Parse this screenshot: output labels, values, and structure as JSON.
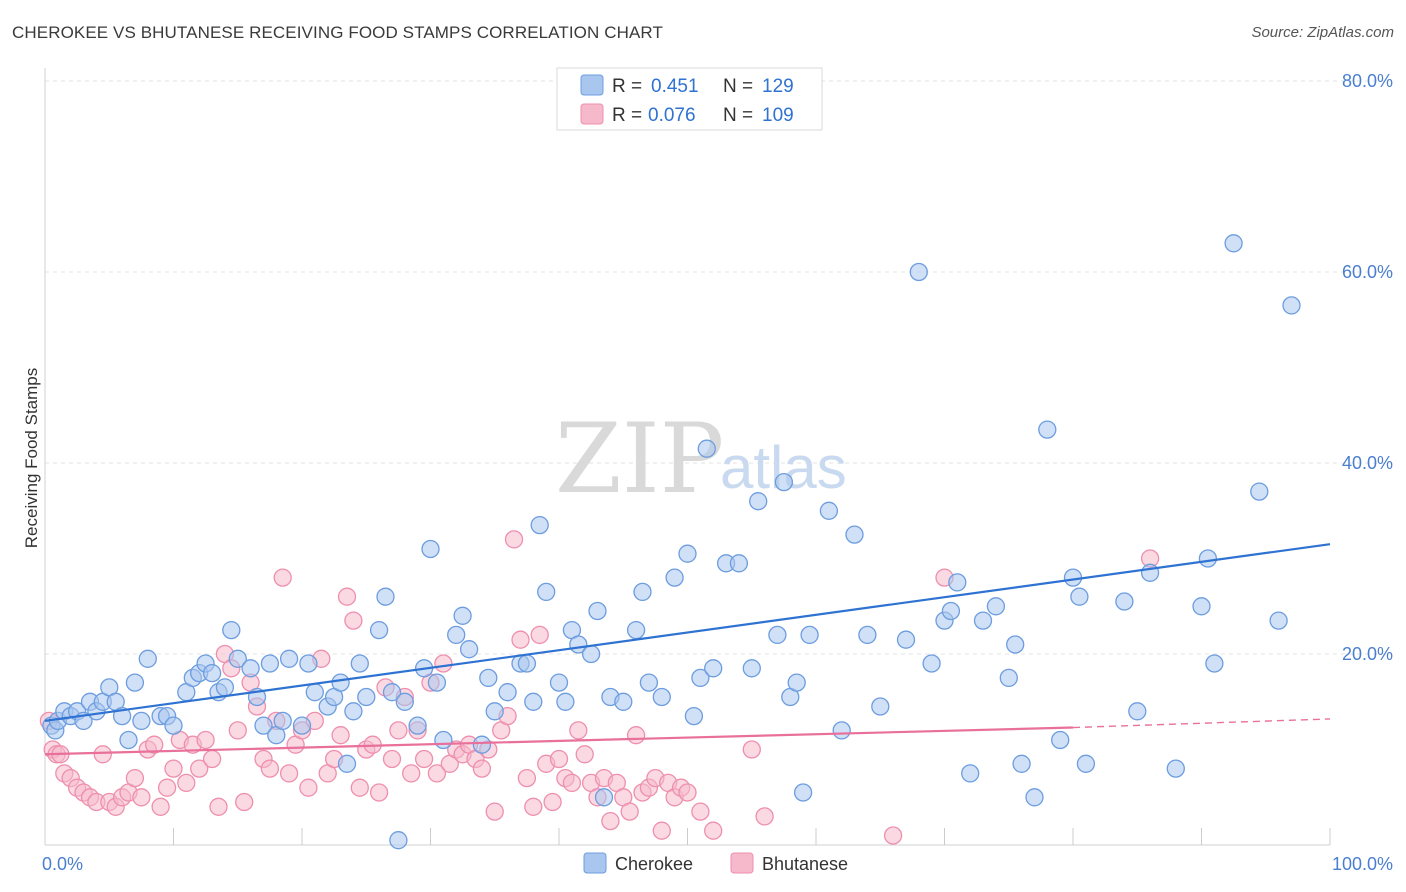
{
  "title": "CHEROKEE VS BHUTANESE RECEIVING FOOD STAMPS CORRELATION CHART",
  "source": "Source: ZipAtlas.com",
  "watermark": {
    "part1": "ZIP",
    "part2": "atlas"
  },
  "legend_top": [
    {
      "r_label": "R = ",
      "r_value": "0.451",
      "n_label": "N = ",
      "n_value": "129"
    },
    {
      "r_label": "R = ",
      "r_value": "0.076",
      "n_label": "N = ",
      "n_value": "109"
    }
  ],
  "legend_bottom": [
    "Cherokee",
    "Bhutanese"
  ],
  "chart_data": {
    "type": "scatter",
    "title": "CHEROKEE VS BHUTANESE RECEIVING FOOD STAMPS CORRELATION CHART",
    "xlabel": "",
    "ylabel": "Receiving Food Stamps",
    "xlim": [
      0,
      100
    ],
    "ylim": [
      0,
      80
    ],
    "x_tick_labels": [
      "0.0%",
      "100.0%"
    ],
    "y_ticks": [
      20,
      40,
      60,
      80
    ],
    "y_tick_labels": [
      "20.0%",
      "40.0%",
      "60.0%",
      "80.0%"
    ],
    "grid": true,
    "legend_placement": "top-center",
    "colors": {
      "cherokee_fill": "#a9c6ee",
      "cherokee_stroke": "#6d9ddf",
      "cherokee_line": "#2e72d2",
      "bhutanese_fill": "#f6b9cc",
      "bhutanese_stroke": "#ee8fae",
      "bhutanese_line": "#e8709a",
      "tick": "#4a7fd0",
      "grid": "#e3e3e3"
    },
    "series": [
      {
        "name": "Cherokee",
        "r": 0.451,
        "n": 129,
        "trend": {
          "x": [
            0,
            100
          ],
          "y": [
            13.0,
            31.5
          ]
        },
        "points": [
          [
            0.5,
            12.5
          ],
          [
            0.8,
            12
          ],
          [
            1,
            13
          ],
          [
            1.5,
            14
          ],
          [
            2,
            13.5
          ],
          [
            2.5,
            14
          ],
          [
            3,
            13
          ],
          [
            3.5,
            15
          ],
          [
            4,
            14
          ],
          [
            4.5,
            15
          ],
          [
            5,
            16.5
          ],
          [
            5.5,
            15
          ],
          [
            6,
            13.5
          ],
          [
            6.5,
            11
          ],
          [
            7,
            17
          ],
          [
            7.5,
            13
          ],
          [
            8,
            19.5
          ],
          [
            9,
            13.5
          ],
          [
            9.5,
            13.5
          ],
          [
            10,
            12.5
          ],
          [
            11,
            16
          ],
          [
            11.5,
            17.5
          ],
          [
            12,
            18
          ],
          [
            12.5,
            19
          ],
          [
            13,
            18
          ],
          [
            13.5,
            16
          ],
          [
            14,
            16.5
          ],
          [
            14.5,
            22.5
          ],
          [
            15,
            19.5
          ],
          [
            16,
            18.5
          ],
          [
            16.5,
            15.5
          ],
          [
            17,
            12.5
          ],
          [
            17.5,
            19
          ],
          [
            18,
            11.5
          ],
          [
            18.5,
            13
          ],
          [
            19,
            19.5
          ],
          [
            20,
            12.5
          ],
          [
            20.5,
            19
          ],
          [
            21,
            16
          ],
          [
            22,
            14.5
          ],
          [
            22.5,
            15.5
          ],
          [
            23,
            17
          ],
          [
            23.5,
            8.5
          ],
          [
            24,
            14
          ],
          [
            24.5,
            19
          ],
          [
            25,
            15.5
          ],
          [
            26,
            22.5
          ],
          [
            26.5,
            26
          ],
          [
            27,
            16
          ],
          [
            27.5,
            0.5
          ],
          [
            28,
            15
          ],
          [
            29,
            12.5
          ],
          [
            29.5,
            18.5
          ],
          [
            30,
            31
          ],
          [
            30.5,
            17
          ],
          [
            31,
            11
          ],
          [
            32,
            22
          ],
          [
            32.5,
            24
          ],
          [
            33,
            20.5
          ],
          [
            34,
            10.5
          ],
          [
            34.5,
            17.5
          ],
          [
            35,
            14
          ],
          [
            36,
            16
          ],
          [
            37,
            19
          ],
          [
            37.5,
            19
          ],
          [
            38,
            15
          ],
          [
            38.5,
            33.5
          ],
          [
            39,
            26.5
          ],
          [
            40,
            17
          ],
          [
            40.5,
            15
          ],
          [
            41,
            22.5
          ],
          [
            41.5,
            21
          ],
          [
            42.5,
            20
          ],
          [
            43,
            24.5
          ],
          [
            43.5,
            5
          ],
          [
            44,
            15.5
          ],
          [
            45,
            15
          ],
          [
            46,
            22.5
          ],
          [
            46.5,
            26.5
          ],
          [
            47,
            17
          ],
          [
            48,
            15.5
          ],
          [
            49,
            28
          ],
          [
            50,
            30.5
          ],
          [
            50.5,
            13.5
          ],
          [
            51,
            17.5
          ],
          [
            51.5,
            41.5
          ],
          [
            52,
            18.5
          ],
          [
            53,
            29.5
          ],
          [
            54,
            29.5
          ],
          [
            55,
            18.5
          ],
          [
            55.5,
            36
          ],
          [
            57,
            22
          ],
          [
            57.5,
            38
          ],
          [
            58,
            15.5
          ],
          [
            58.5,
            17
          ],
          [
            59,
            5.5
          ],
          [
            59.5,
            22
          ],
          [
            61,
            35
          ],
          [
            62,
            12
          ],
          [
            63,
            32.5
          ],
          [
            64,
            22
          ],
          [
            65,
            14.5
          ],
          [
            67,
            21.5
          ],
          [
            68,
            60
          ],
          [
            69,
            19
          ],
          [
            70,
            23.5
          ],
          [
            70.5,
            24.5
          ],
          [
            71,
            27.5
          ],
          [
            72,
            7.5
          ],
          [
            73,
            23.5
          ],
          [
            74,
            25
          ],
          [
            75,
            17.5
          ],
          [
            75.5,
            21
          ],
          [
            76,
            8.5
          ],
          [
            77,
            5
          ],
          [
            78,
            43.5
          ],
          [
            79,
            11
          ],
          [
            80,
            28
          ],
          [
            80.5,
            26
          ],
          [
            81,
            8.5
          ],
          [
            84,
            25.5
          ],
          [
            85,
            14
          ],
          [
            86,
            28.5
          ],
          [
            88,
            8
          ],
          [
            90,
            25
          ],
          [
            90.5,
            30
          ],
          [
            91,
            19
          ],
          [
            96,
            23.5
          ],
          [
            92.5,
            63
          ],
          [
            94.5,
            37
          ],
          [
            97,
            56.5
          ]
        ]
      },
      {
        "name": "Bhutanese",
        "r": 0.076,
        "n": 109,
        "trend_solid": {
          "x": [
            0,
            80
          ],
          "y": [
            9.5,
            12.3
          ]
        },
        "trend_dashed": {
          "x": [
            80,
            100
          ],
          "y": [
            12.3,
            13.2
          ]
        },
        "points": [
          [
            0.3,
            13
          ],
          [
            0.6,
            10
          ],
          [
            0.9,
            9.5
          ],
          [
            1.2,
            9.5
          ],
          [
            1.5,
            7.5
          ],
          [
            2,
            7
          ],
          [
            2.5,
            6
          ],
          [
            3,
            5.5
          ],
          [
            3.5,
            5
          ],
          [
            4,
            4.5
          ],
          [
            4.5,
            9.5
          ],
          [
            5,
            4.5
          ],
          [
            5.5,
            4
          ],
          [
            6,
            5
          ],
          [
            6.5,
            5.5
          ],
          [
            7,
            7
          ],
          [
            7.5,
            5
          ],
          [
            8,
            10
          ],
          [
            8.5,
            10.5
          ],
          [
            9,
            4
          ],
          [
            9.5,
            6
          ],
          [
            10,
            8
          ],
          [
            10.5,
            11
          ],
          [
            11,
            6.5
          ],
          [
            11.5,
            10.5
          ],
          [
            12,
            8
          ],
          [
            12.5,
            11
          ],
          [
            13,
            9
          ],
          [
            13.5,
            4
          ],
          [
            14,
            20
          ],
          [
            14.5,
            18.5
          ],
          [
            15,
            12
          ],
          [
            15.5,
            4.5
          ],
          [
            16,
            17
          ],
          [
            16.5,
            14.5
          ],
          [
            17,
            9
          ],
          [
            17.5,
            8
          ],
          [
            18,
            13
          ],
          [
            18.5,
            28
          ],
          [
            19,
            7.5
          ],
          [
            19.5,
            10.5
          ],
          [
            20,
            12
          ],
          [
            20.5,
            6
          ],
          [
            21,
            13
          ],
          [
            21.5,
            19.5
          ],
          [
            22,
            7.5
          ],
          [
            22.5,
            9
          ],
          [
            23,
            11.5
          ],
          [
            23.5,
            26
          ],
          [
            24,
            23.5
          ],
          [
            24.5,
            6
          ],
          [
            25,
            10
          ],
          [
            25.5,
            10.5
          ],
          [
            26,
            5.5
          ],
          [
            26.5,
            16.5
          ],
          [
            27,
            9
          ],
          [
            27.5,
            12
          ],
          [
            28,
            15.5
          ],
          [
            28.5,
            7.5
          ],
          [
            29,
            12
          ],
          [
            29.5,
            9
          ],
          [
            30,
            17
          ],
          [
            30.5,
            7.5
          ],
          [
            31,
            19
          ],
          [
            31.5,
            8.5
          ],
          [
            32,
            10
          ],
          [
            32.5,
            9.5
          ],
          [
            33,
            10.5
          ],
          [
            33.5,
            9
          ],
          [
            34,
            8
          ],
          [
            34.5,
            10
          ],
          [
            35,
            3.5
          ],
          [
            35.5,
            12
          ],
          [
            36,
            13.5
          ],
          [
            36.5,
            32
          ],
          [
            37,
            21.5
          ],
          [
            37.5,
            7
          ],
          [
            38,
            4
          ],
          [
            38.5,
            22
          ],
          [
            39,
            8.5
          ],
          [
            39.5,
            4.5
          ],
          [
            40,
            9
          ],
          [
            40.5,
            7
          ],
          [
            41,
            6.5
          ],
          [
            41.5,
            12
          ],
          [
            42,
            9.5
          ],
          [
            42.5,
            6.5
          ],
          [
            43,
            5
          ],
          [
            43.5,
            7
          ],
          [
            44,
            2.5
          ],
          [
            44.5,
            6.5
          ],
          [
            45,
            5
          ],
          [
            45.5,
            3.5
          ],
          [
            46,
            11.5
          ],
          [
            46.5,
            5.5
          ],
          [
            47,
            6
          ],
          [
            47.5,
            7
          ],
          [
            48,
            1.5
          ],
          [
            48.5,
            6.5
          ],
          [
            49,
            5
          ],
          [
            49.5,
            6
          ],
          [
            50,
            5.5
          ],
          [
            51,
            3.5
          ],
          [
            52,
            1.5
          ],
          [
            55,
            10
          ],
          [
            56,
            3
          ],
          [
            66,
            1
          ],
          [
            70,
            28
          ],
          [
            86,
            30
          ]
        ]
      }
    ]
  }
}
